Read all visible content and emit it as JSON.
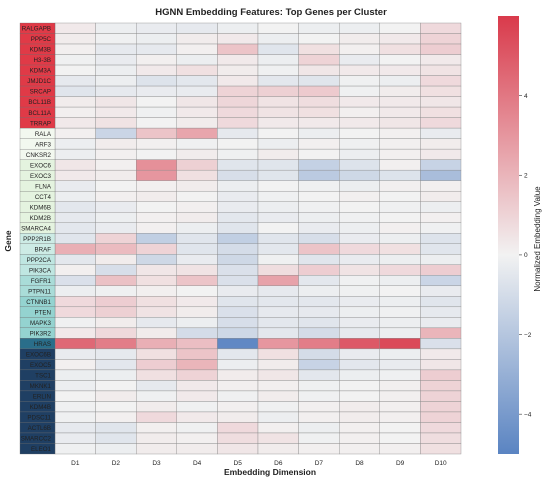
{
  "chart_data": {
    "type": "heatmap",
    "title": "HGNN Embedding Features: Top Genes per Cluster",
    "xlabel": "Embedding Dimension",
    "ylabel": "Gene",
    "colorbar_label": "Normalized Embedding Value",
    "colorbar_ticks": [
      4,
      2,
      0,
      -2,
      -4
    ],
    "color_range": [
      -5,
      6
    ],
    "colormap": {
      "low": "#5a84c2",
      "mid": "#f2f2f2",
      "high": "#d93a4b"
    },
    "columns": [
      "D1",
      "D2",
      "D3",
      "D4",
      "D5",
      "D6",
      "D7",
      "D8",
      "D9",
      "D10"
    ],
    "rows": [
      "RALGAPB",
      "PPP5C",
      "KDM3B",
      "H3-3B",
      "KDM3A",
      "JMJD1C",
      "SRCAP",
      "BCL11B",
      "BCL11A",
      "TRRAP",
      "RALA",
      "ARF3",
      "CNKSR2",
      "EXOC6",
      "EXOC3",
      "FLNA",
      "CCT4",
      "KDM6B",
      "KDM2B",
      "SMARCA4",
      "PPP2R1B",
      "BRAF",
      "PPP2CA",
      "PIK3CA",
      "FGFR1",
      "PTPN11",
      "CTNNB1",
      "PTEN",
      "MAPK3",
      "PIK3R2",
      "HRAS",
      "EXOC6B",
      "EXOC5",
      "TSC1",
      "MKNK1",
      "ERLIN",
      "KDM4B",
      "PDSC11",
      "ACTL6B",
      "SMARCC2",
      "ELEO1"
    ],
    "cluster_colors": [
      "#e03a47",
      "#e03a47",
      "#e03a47",
      "#e03a47",
      "#e03a47",
      "#e03a47",
      "#e03a47",
      "#e03a47",
      "#e03a47",
      "#e03a47",
      "#f2f8ef",
      "#f2f8ef",
      "#f2f8ef",
      "#e4f3df",
      "#e4f3df",
      "#e4f3df",
      "#e4f3df",
      "#e4f3df",
      "#e4f3df",
      "#e4f3df",
      "#cdebe5",
      "#cdebe5",
      "#bfe6e1",
      "#bfe6e1",
      "#a9dcd8",
      "#a9dcd8",
      "#94d3d0",
      "#94d3d0",
      "#94d3d0",
      "#94d3d0",
      "#2a6e8a",
      "#1f3f63",
      "#1f3f63",
      "#1f3f63",
      "#1f3f63",
      "#1f3f63",
      "#1f3f63",
      "#1f3f63",
      "#1f3f63",
      "#1f3f63",
      "#1f3f63"
    ],
    "values": [
      [
        0.3,
        -0.2,
        -0.3,
        -0.4,
        -0.2,
        0,
        -0.2,
        -0.2,
        0,
        0.8
      ],
      [
        0.2,
        -0.1,
        -0.2,
        0.2,
        0.3,
        -0.2,
        0,
        0.2,
        0.3,
        1.0
      ],
      [
        0.1,
        -0.4,
        -0.4,
        0.1,
        1.5,
        -0.6,
        0.6,
        0.1,
        0.6,
        1.2
      ],
      [
        -0.1,
        -0.3,
        0.1,
        -0.2,
        0.3,
        -0.2,
        1.0,
        -0.3,
        0,
        0.3
      ],
      [
        0,
        -0.2,
        0.3,
        0.6,
        0.2,
        -0.1,
        0.4,
        0.3,
        0.3,
        0.5
      ],
      [
        -0.4,
        -0.2,
        -0.7,
        -0.5,
        0.3,
        -0.5,
        -0.6,
        -0.1,
        -0.2,
        0.8
      ],
      [
        -0.6,
        -0.4,
        -0.3,
        -0.3,
        1.0,
        1.1,
        1.3,
        -0.1,
        0.2,
        0.6
      ],
      [
        0.2,
        0.4,
        0,
        0.4,
        0.9,
        0.5,
        0.7,
        0.3,
        0.3,
        0.4
      ],
      [
        0.1,
        0.3,
        -0.1,
        0.3,
        0.8,
        0.5,
        0.6,
        0.1,
        0.3,
        0.6
      ],
      [
        0.3,
        0.5,
        0,
        0.2,
        0.8,
        0.3,
        0.3,
        0.3,
        0.4,
        0.8
      ],
      [
        0.1,
        -1.3,
        1.5,
        2.5,
        -0.4,
        0,
        -0.2,
        0,
        0.1,
        -0.3
      ],
      [
        -0.2,
        0.2,
        0.1,
        -0.1,
        0,
        -0.2,
        0.1,
        -0.1,
        0.1,
        0.2
      ],
      [
        -0.2,
        0.1,
        0,
        0.2,
        -0.1,
        0.2,
        0,
        -0.2,
        0.1,
        0.3
      ],
      [
        0.4,
        0.1,
        3.2,
        1.1,
        -0.6,
        -0.6,
        -1.5,
        -0.7,
        0.1,
        -1.4
      ],
      [
        0.3,
        0.2,
        3.0,
        0.6,
        -0.9,
        -0.6,
        -1.8,
        -1.2,
        -0.7,
        -2.4
      ],
      [
        -0.3,
        0,
        0.1,
        0.2,
        -0.2,
        0,
        -0.1,
        -0.2,
        0.1,
        0.1
      ],
      [
        -0.2,
        0.1,
        0.2,
        0,
        -0.3,
        -0.1,
        0,
        0.1,
        0,
        0.2
      ],
      [
        -0.5,
        -0.3,
        0,
        0.1,
        -0.3,
        -0.2,
        -0.1,
        0,
        -0.1,
        -0.2
      ],
      [
        -0.4,
        -0.2,
        0.1,
        0.2,
        -0.5,
        -0.3,
        -0.2,
        -0.1,
        0,
        0.1
      ],
      [
        -0.5,
        -0.3,
        0.1,
        -0.2,
        -0.6,
        0,
        -0.3,
        -0.2,
        0.1,
        -0.1
      ],
      [
        -0.6,
        1.0,
        -1.6,
        -0.6,
        -1.6,
        -0.6,
        -0.9,
        -0.3,
        -0.2,
        -0.7
      ],
      [
        2.2,
        1.8,
        1.0,
        -0.6,
        -1.0,
        -0.5,
        1.5,
        0.8,
        0.6,
        -0.6
      ],
      [
        -0.5,
        0.2,
        -1.2,
        -0.3,
        -1.2,
        -0.1,
        -0.6,
        -0.3,
        -0.2,
        -0.2
      ],
      [
        0.1,
        -0.9,
        0.4,
        0.5,
        -0.8,
        0.7,
        1.2,
        0.5,
        0.8,
        1.2
      ],
      [
        -0.8,
        1.6,
        0.6,
        1.5,
        -0.8,
        2.6,
        -0.5,
        -0.1,
        -0.2,
        -1.3
      ],
      [
        -0.2,
        -0.1,
        0.1,
        0,
        -0.3,
        -0.4,
        -0.2,
        -0.1,
        0,
        -0.3
      ],
      [
        0.8,
        1.2,
        0.6,
        0.3,
        -0.6,
        -0.5,
        -0.5,
        -0.3,
        -0.2,
        -0.6
      ],
      [
        0.8,
        1.1,
        0.5,
        0.2,
        -0.8,
        -0.4,
        -0.4,
        -0.2,
        -0.1,
        -0.4
      ],
      [
        -0.1,
        0.2,
        -0.4,
        -0.2,
        -0.9,
        -0.5,
        -0.6,
        -0.3,
        -0.2,
        -0.3
      ],
      [
        0.3,
        0.8,
        0.2,
        -1.0,
        -1.2,
        -0.5,
        -1.0,
        -0.4,
        -0.2,
        2.0
      ],
      [
        4.5,
        3.8,
        2.2,
        1.7,
        -4.8,
        3.0,
        3.8,
        5.0,
        5.5,
        -0.8
      ],
      [
        -0.3,
        -0.4,
        0.6,
        1.5,
        -0.5,
        0.6,
        -1.0,
        -0.3,
        -0.2,
        0.3
      ],
      [
        0.1,
        -0.5,
        1.2,
        2.0,
        -0.2,
        0.2,
        -1.4,
        -0.5,
        -0.3,
        0.4
      ],
      [
        -0.2,
        -0.2,
        0.6,
        1.0,
        0.2,
        0.4,
        -0.5,
        -0.2,
        -0.1,
        1.2
      ],
      [
        -0.2,
        0,
        -0.4,
        0.3,
        0.1,
        0.1,
        -0.1,
        0,
        0.1,
        1.0
      ],
      [
        0,
        0.2,
        -0.1,
        0.3,
        -0.1,
        0.2,
        -0.1,
        0,
        0.1,
        1.0
      ],
      [
        -0.1,
        0,
        0.2,
        -0.1,
        0.1,
        -0.1,
        0.1,
        0.2,
        0.1,
        1.0
      ],
      [
        -0.1,
        0.1,
        0.8,
        0.3,
        0.2,
        -0.2,
        0.1,
        0.2,
        0.1,
        1.0
      ],
      [
        -0.4,
        -0.6,
        0.1,
        -0.1,
        0.8,
        0.1,
        -0.2,
        0.1,
        0,
        0.8
      ],
      [
        -0.3,
        -0.6,
        0.2,
        0.1,
        0.7,
        0.5,
        -0.1,
        0.1,
        0,
        0.7
      ],
      [
        -0.1,
        -0.2,
        0.2,
        0.2,
        0.4,
        0.2,
        0.1,
        0.1,
        0.1,
        0.6
      ]
    ]
  }
}
